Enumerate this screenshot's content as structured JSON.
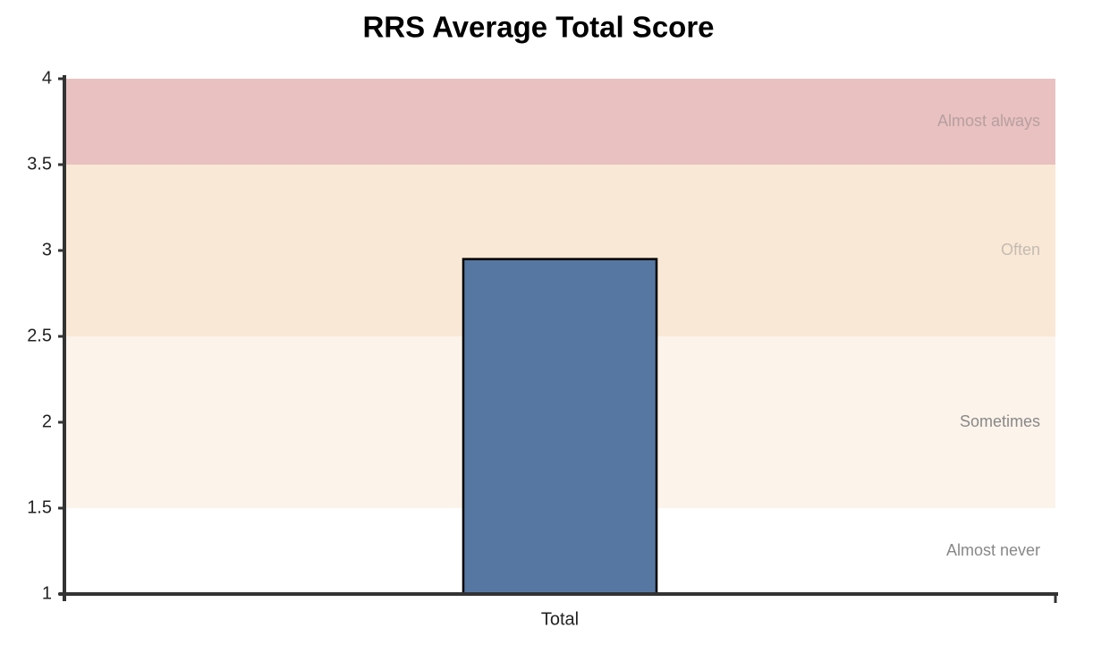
{
  "chart_data": {
    "type": "bar",
    "title": "RRS Average Total Score",
    "categories": [
      "Total"
    ],
    "values": [
      2.95
    ],
    "color": "#5677a2",
    "ylim": [
      1,
      4
    ],
    "yticks": [
      1,
      1.5,
      2,
      2.5,
      3,
      3.5,
      4
    ],
    "bands": [
      {
        "label": "Almost never",
        "from": 1,
        "to": 1.5,
        "color": "#ffffff",
        "label_color": "#888888"
      },
      {
        "label": "Sometimes",
        "from": 1.5,
        "to": 2.5,
        "color": "#fcf3ea",
        "label_color": "#888888"
      },
      {
        "label": "Often",
        "from": 2.5,
        "to": 3.5,
        "color": "#f9e8d5",
        "label_color": "#c4bbb2"
      },
      {
        "label": "Almost always",
        "from": 3.5,
        "to": 4,
        "color": "#e9c1c1",
        "label_color": "#b79f9f"
      }
    ]
  }
}
